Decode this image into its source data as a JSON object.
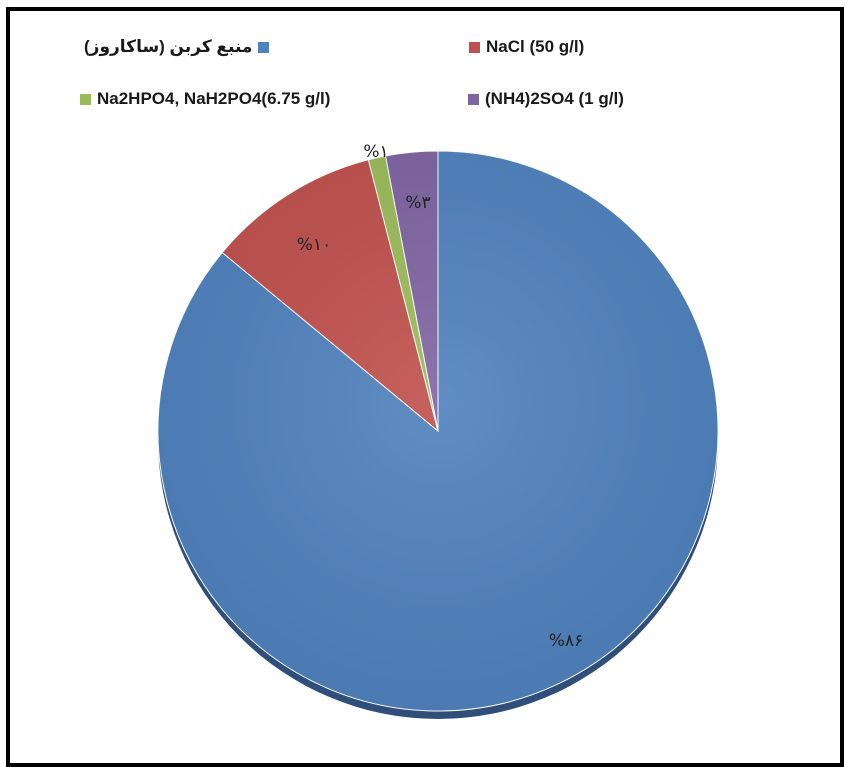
{
  "chart_data": {
    "type": "pie",
    "title": "",
    "categories": [
      "منبع کربن (ساکاروز)",
      "NaCl (50 g/l)",
      "Na2HPO4, NaH2PO4(6.75 g/l)",
      "(NH4)2SO4 (1 g/l)"
    ],
    "values": [
      86,
      10,
      1,
      3
    ],
    "data_labels": [
      "%۸۶",
      "%۱۰",
      "%۱",
      "%۳"
    ],
    "colors": [
      "#4f81bd",
      "#c0504d",
      "#9bbb59",
      "#8064a2"
    ],
    "start_angle_deg": 0,
    "direction": "clockwise",
    "legend_position": "top",
    "data_label_order": [
      "0",
      "1",
      "2",
      "3"
    ]
  }
}
